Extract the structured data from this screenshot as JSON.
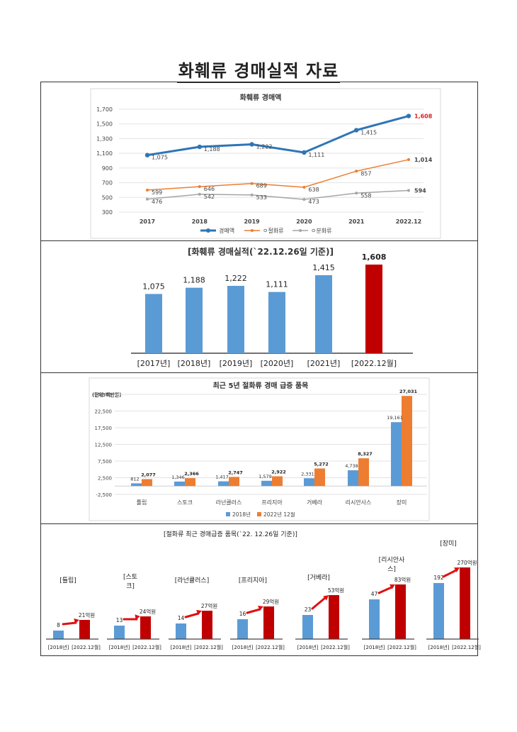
{
  "page_title": "화훼류 경매실적 자료",
  "colors": {
    "blue": "#2e75b6",
    "orange": "#ed7d31",
    "gray": "#a5a5a5",
    "bar_blue": "#5b9bd5",
    "bar_red": "#c00000",
    "arrow_red": "#e01010",
    "highlight_label": "#e02020"
  },
  "chart_data": [
    {
      "type": "line",
      "title": "화훼류 경매액",
      "x": [
        "2017",
        "2018",
        "2019",
        "2020",
        "2021",
        "2022.12"
      ],
      "ylim": [
        300,
        1700
      ],
      "yticks": [
        "300",
        "500",
        "700",
        "900",
        "1,100",
        "1,300",
        "1,500",
        "1,700"
      ],
      "grid": true,
      "legend": "bottom",
      "series": [
        {
          "name": "경매액",
          "values": [
            1075,
            1188,
            1222,
            1111,
            1415,
            1608
          ],
          "labels": [
            "1,075",
            "1,188",
            "1,222",
            "1,111",
            "1,415",
            "1,608"
          ],
          "color": "#2e75b6"
        },
        {
          "name": "ㅇ절화류",
          "values": [
            599,
            646,
            689,
            638,
            857,
            1014
          ],
          "labels": [
            "599",
            "646",
            "689",
            "638",
            "857",
            "1,014"
          ],
          "color": "#ed7d31"
        },
        {
          "name": "ㅇ분화류",
          "values": [
            476,
            542,
            533,
            473,
            558,
            594
          ],
          "labels": [
            "476",
            "542",
            "533",
            "473",
            "558",
            "594"
          ],
          "color": "#a5a5a5"
        }
      ]
    },
    {
      "type": "bar",
      "title": "[화훼류 경매실적(`22.12.26일 기준)]",
      "categories": [
        "[2017년]",
        "[2018년]",
        "[2019년]",
        "[2020년]",
        "[2021년]",
        "[2022.12월]"
      ],
      "values": [
        1075,
        1188,
        1222,
        1111,
        1415,
        1608
      ],
      "labels": [
        "1,075",
        "1,188",
        "1,222",
        "1,111",
        "1,415",
        "1,608"
      ],
      "ylim": [
        0,
        1608
      ]
    },
    {
      "type": "bar",
      "title": "최근 5년 절화류 경매 급증 품목",
      "unit": "(단위:백만원)",
      "categories": [
        "튤립",
        "스토크",
        "라넌큘러스",
        "프리지아",
        "거베라",
        "리시안사스",
        "장미"
      ],
      "ylim": [
        -2500,
        27500
      ],
      "yticks": [
        "-2,500",
        "2,500",
        "7,500",
        "12,500",
        "17,500",
        "22,500",
        "27,500"
      ],
      "grid": true,
      "legend": "bottom",
      "series": [
        {
          "name": "2018년",
          "values": [
            812,
            1346,
            1417,
            1579,
            2331,
            4738,
            19161
          ],
          "labels": [
            "812",
            "1,346",
            "1,417",
            "1,579",
            "2,331",
            "4,738",
            "19,161"
          ]
        },
        {
          "name": "2022년 12월",
          "values": [
            2077,
            2366,
            2747,
            2922,
            5272,
            8327,
            27031
          ],
          "labels": [
            "2,077",
            "2,366",
            "2,747",
            "2,922",
            "5,272",
            "8,327",
            "27,031"
          ]
        }
      ]
    },
    {
      "type": "bar",
      "title": "[절화류 최근 경매급증 품목(`22. 12.26일 기준)]",
      "groups": [
        {
          "name": [
            "[튤립]"
          ],
          "before": 8,
          "after": 21,
          "before_label": "8",
          "after_label": "21억원"
        },
        {
          "name": [
            "[스토",
            "크]"
          ],
          "before": 13,
          "after": 24,
          "before_label": "13",
          "after_label": "24억원"
        },
        {
          "name": [
            "[라넌큘러스]"
          ],
          "before": 14,
          "after": 27,
          "before_label": "14",
          "after_label": "27억원"
        },
        {
          "name": [
            "[프리지아]"
          ],
          "before": 16,
          "after": 29,
          "before_label": "16",
          "after_label": "29억원"
        },
        {
          "name": [
            "[거베라]"
          ],
          "before": 23,
          "after": 53,
          "before_label": "23",
          "after_label": "53억원"
        },
        {
          "name": [
            "[리시안사",
            "스]"
          ],
          "before": 47,
          "after": 83,
          "before_label": "47",
          "after_label": "83억원"
        },
        {
          "name": [
            "[장미]"
          ],
          "before": 192,
          "after": 270,
          "before_label": "192",
          "after_label": "270억원"
        }
      ],
      "x_labels": [
        "[2018년]",
        "[2022.12월]"
      ]
    }
  ]
}
